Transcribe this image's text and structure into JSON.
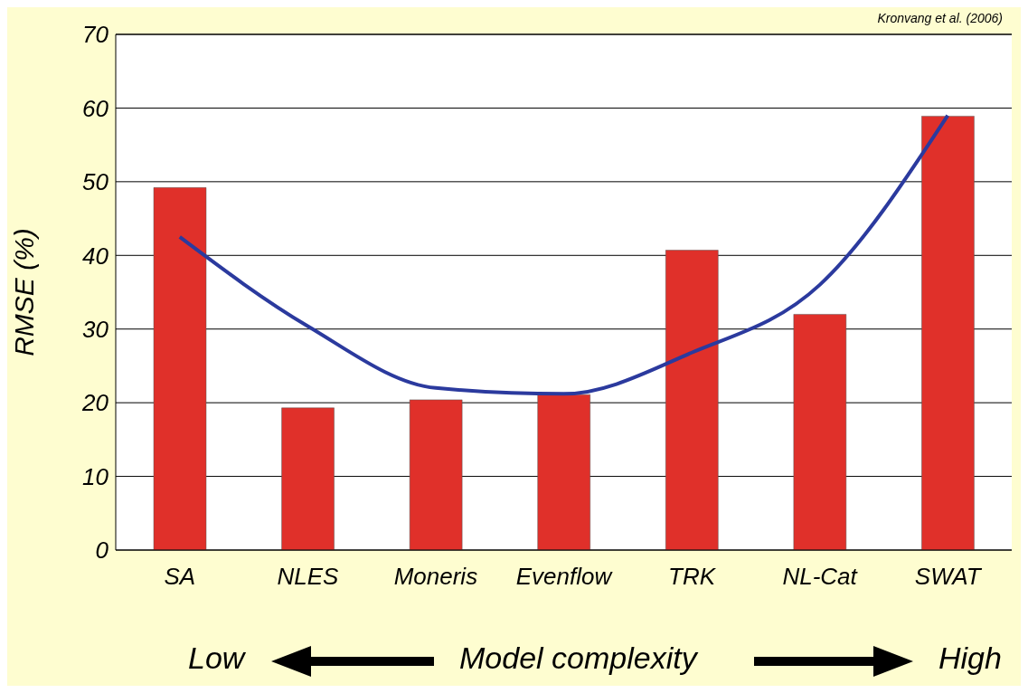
{
  "chart_data": {
    "type": "bar",
    "ylabel": "RMSE (%)",
    "categories": [
      "SA",
      "NLES",
      "Moneris",
      "Evenflow",
      "TRK",
      "NL-Cat",
      "SWAT"
    ],
    "series": [
      {
        "color": "#e0302a",
        "values": [
          49.2,
          19.3,
          20.4,
          21.1,
          40.7,
          32.0,
          58.9
        ]
      },
      {
        "type": "line",
        "color": "#2b3a9e",
        "marker": "none",
        "values": [
          42.5,
          30.4,
          22.0,
          21.2,
          26.8,
          36.0,
          59.0
        ]
      }
    ],
    "ylim": [
      0,
      70
    ],
    "yticks": [
      0,
      10,
      20,
      30,
      40,
      50,
      60,
      70
    ],
    "grid": "y",
    "annotations": [
      "Kronvang et al. (2006)",
      "Low",
      "Model complexity",
      "High"
    ]
  }
}
